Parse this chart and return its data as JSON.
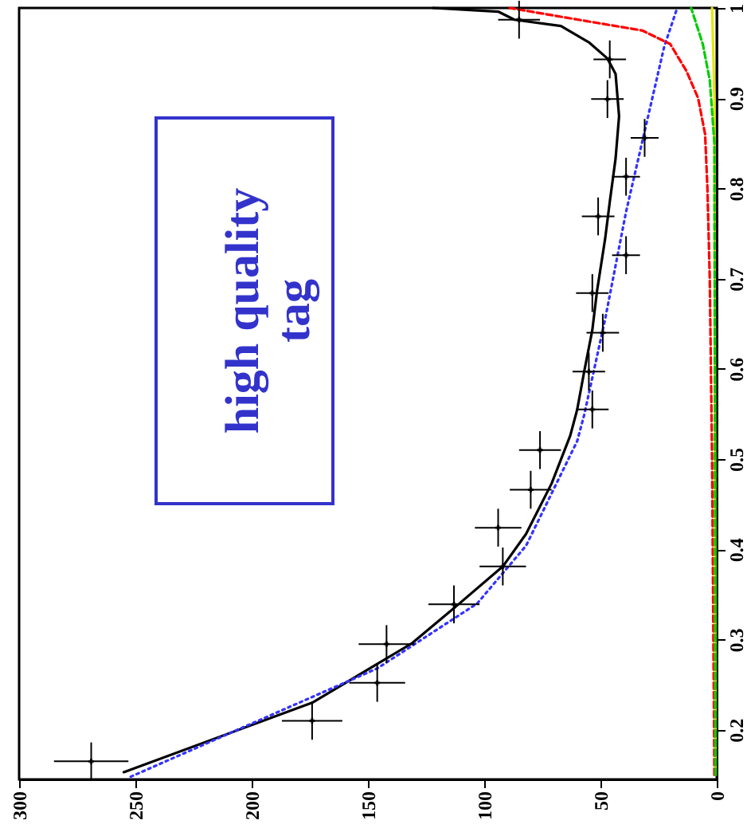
{
  "chart_data": {
    "type": "line",
    "xlim": [
      300,
      0
    ],
    "ylim": [
      0.145,
      1
    ],
    "xticks": [
      300,
      250,
      200,
      150,
      100,
      50,
      0
    ],
    "yticks": [
      0.2,
      0.3,
      0.4,
      0.5,
      0.6,
      0.7,
      0.8,
      0.9,
      1
    ],
    "grid": false,
    "annotations": [
      "high quality\ntag"
    ],
    "series": [
      {
        "type": "scatter",
        "color": "#000000",
        "marker": "cross",
        "x": [
          269,
          174,
          146,
          142,
          113,
          92,
          94,
          80,
          76,
          53.5,
          55,
          49,
          53.5,
          39,
          51,
          39,
          31,
          47,
          46,
          85
        ],
        "values": [
          0.165,
          0.21,
          0.252,
          0.295,
          0.339,
          0.381,
          0.424,
          0.466,
          0.51,
          0.555,
          0.597,
          0.64,
          0.684,
          0.726,
          0.769,
          0.813,
          0.856,
          0.899,
          0.943,
          0.987
        ],
        "xerrors": [
          16,
          13,
          12,
          12,
          11,
          10,
          10,
          9,
          9,
          7,
          7,
          7,
          7,
          6,
          7,
          6,
          6,
          7,
          7,
          9
        ],
        "errors": [
          0.021,
          0.021,
          0.021,
          0.021,
          0.021,
          0.021,
          0.021,
          0.021,
          0.021,
          0.021,
          0.021,
          0.021,
          0.021,
          0.021,
          0.021,
          0.021,
          0.021,
          0.021,
          0.021,
          0.021
        ]
      },
      {
        "type": "line",
        "color": "#000000",
        "line_style": "solid",
        "x": [
          255,
          174,
          146,
          131,
          112,
          92,
          82,
          71,
          63,
          60,
          57,
          53.5,
          51.5,
          48,
          46,
          43.5,
          42,
          43.5,
          47,
          55,
          67,
          87,
          94,
          122
        ],
        "values": [
          0.153,
          0.23,
          0.273,
          0.296,
          0.337,
          0.381,
          0.417,
          0.473,
          0.526,
          0.555,
          0.597,
          0.643,
          0.686,
          0.744,
          0.785,
          0.833,
          0.88,
          0.927,
          0.944,
          0.962,
          0.98,
          0.987,
          0.996,
          1
        ]
      },
      {
        "type": "line",
        "color": "#3333ff",
        "line_style": "dotted",
        "x": [
          252,
          146,
          103,
          82,
          60,
          57,
          48,
          39,
          29.5,
          22.6,
          17
        ],
        "values": [
          0.148,
          0.268,
          0.34,
          0.404,
          0.52,
          0.549,
          0.655,
          0.774,
          0.88,
          0.957,
          1
        ]
      },
      {
        "type": "line",
        "color": "#ff0000",
        "line_style": "dashed",
        "x": [
          1,
          2,
          3,
          4,
          5,
          8,
          13,
          20,
          32,
          55,
          89
        ],
        "values": [
          0.15,
          0.5,
          0.7,
          0.8,
          0.86,
          0.9,
          0.93,
          0.96,
          0.975,
          0.985,
          1
        ]
      },
      {
        "type": "line",
        "color": "#e6e600",
        "line_style": "solid",
        "x": [
          0.5,
          1,
          2
        ],
        "values": [
          0.15,
          0.9,
          1
        ]
      },
      {
        "type": "line",
        "color": "#00cc00",
        "line_style": "dashed",
        "x": [
          0.5,
          1,
          3,
          6,
          8.5,
          11
        ],
        "values": [
          0.15,
          0.85,
          0.92,
          0.96,
          0.98,
          1
        ]
      }
    ]
  }
}
